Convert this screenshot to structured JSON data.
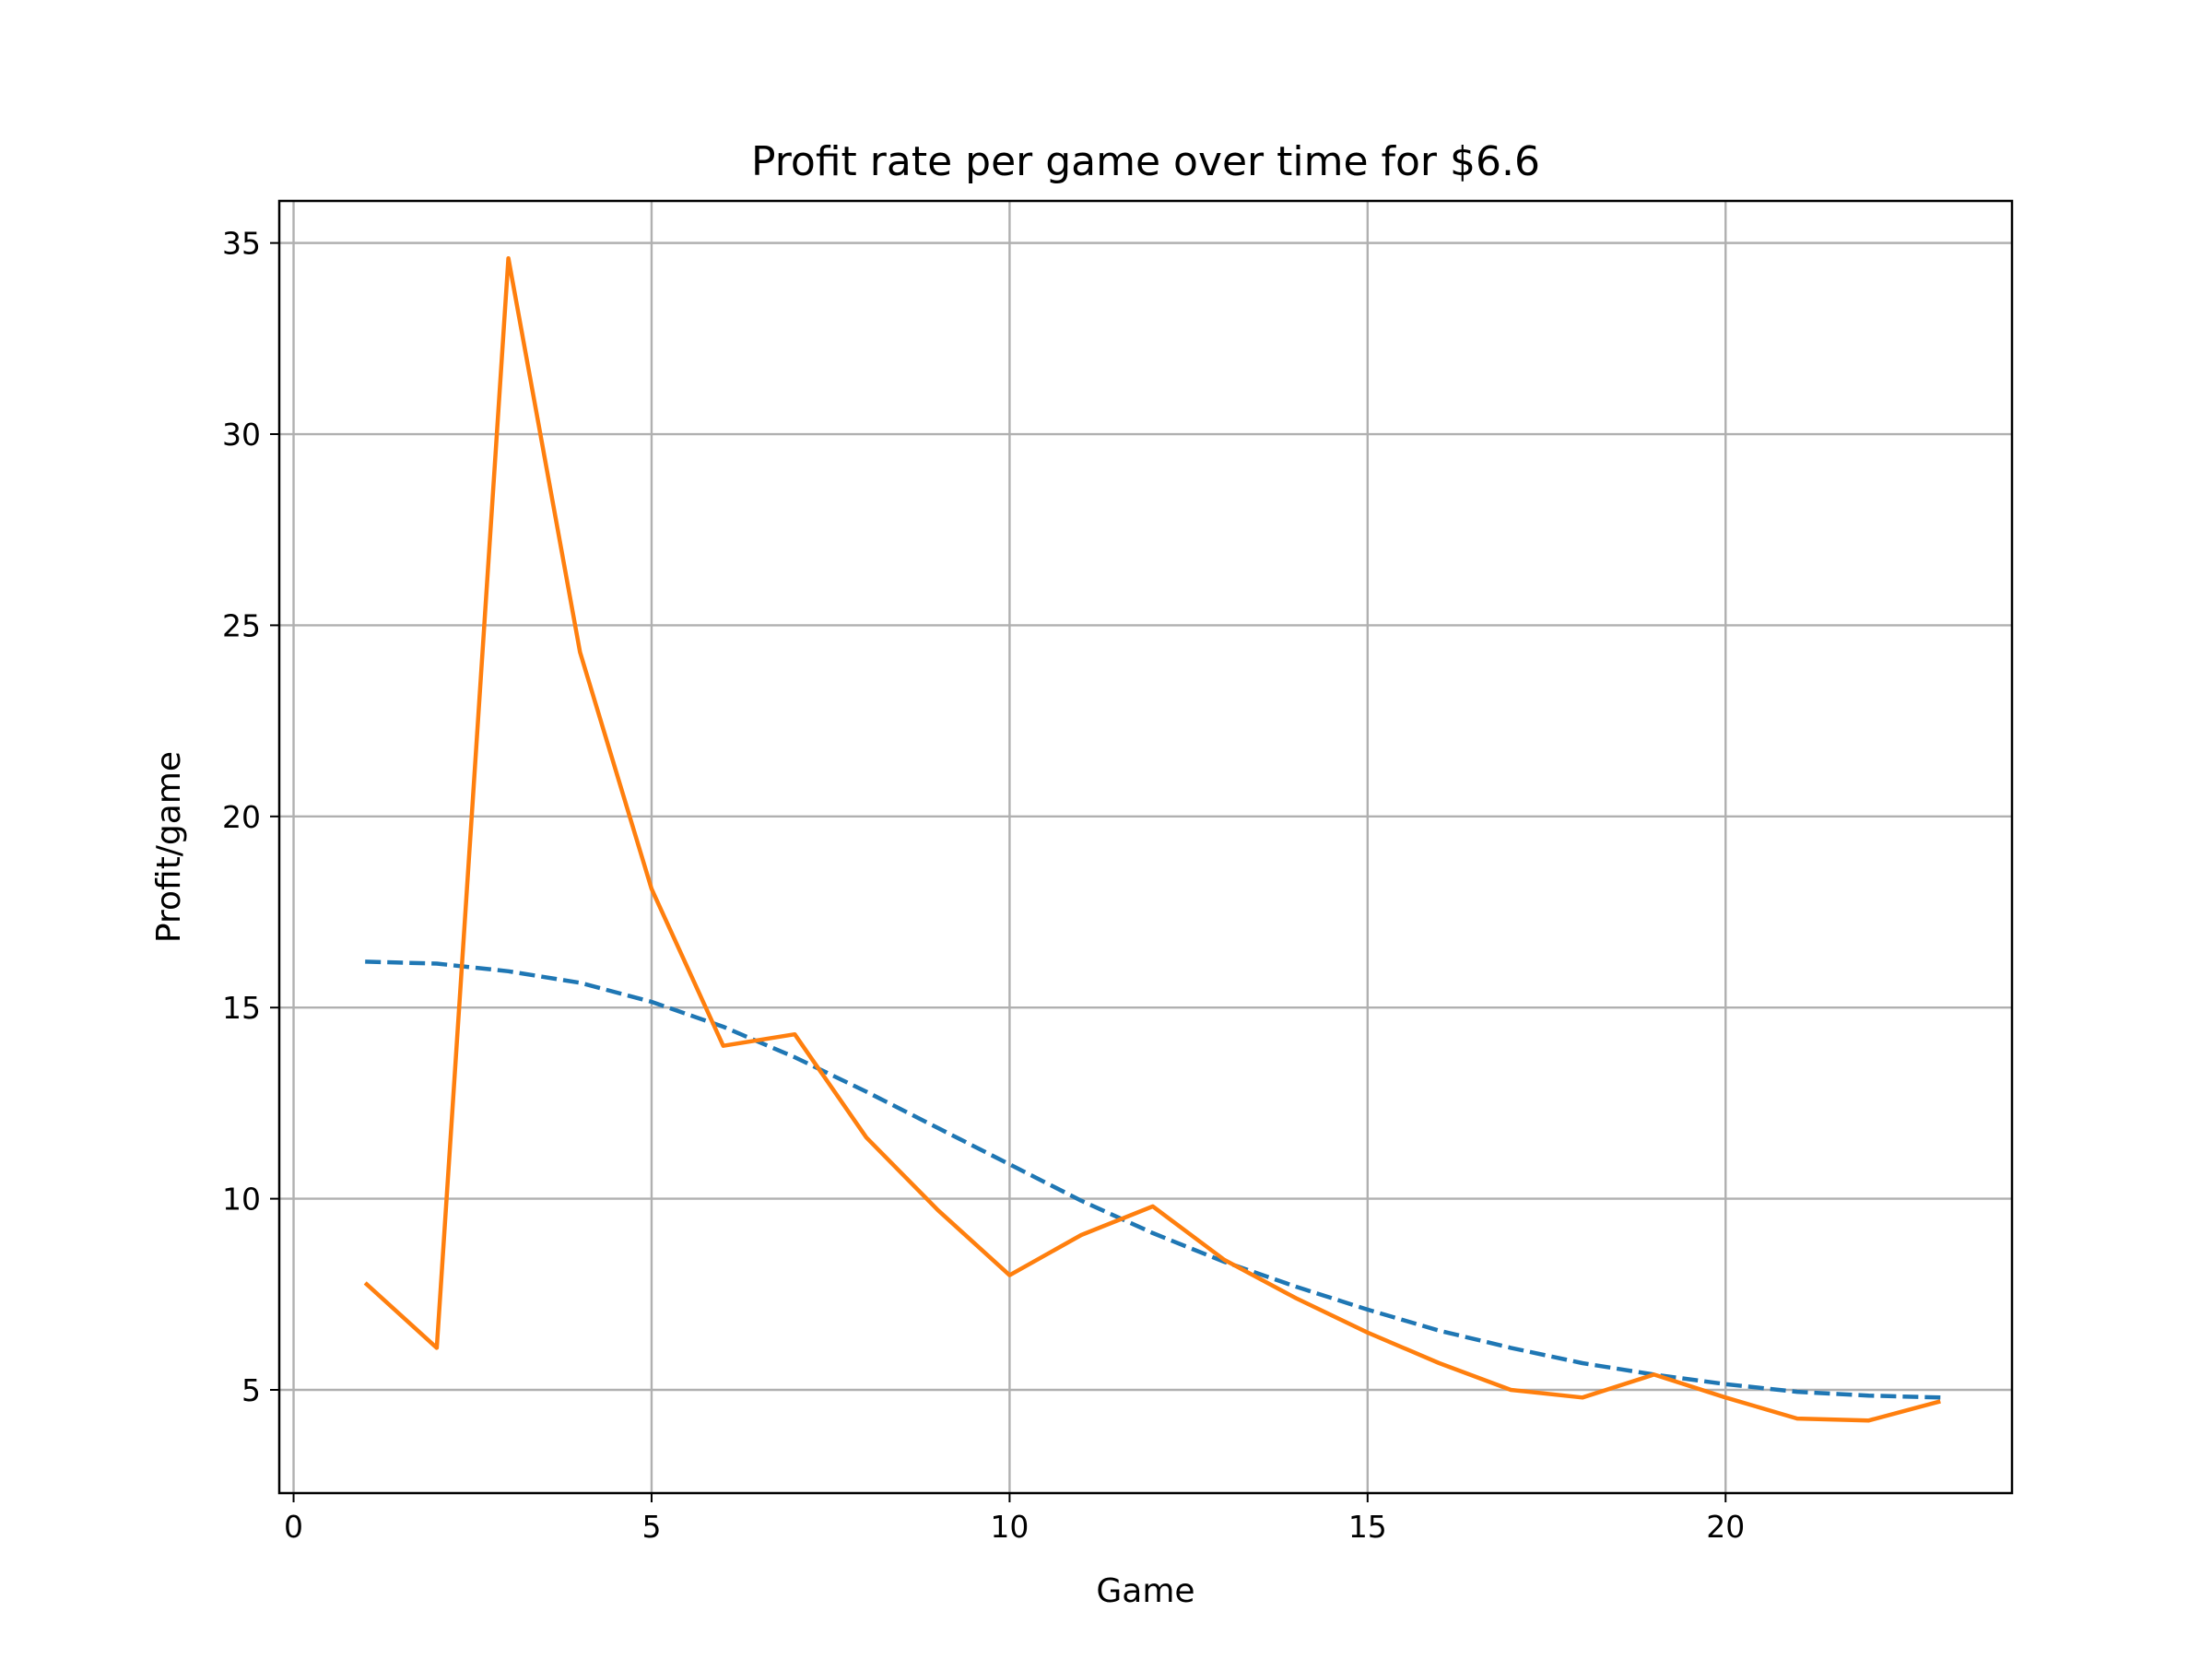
{
  "chart_data": {
    "type": "line",
    "title": "Profit rate per game over time for $6.6",
    "xlabel": "Game",
    "ylabel": "Profit/game",
    "xlim": [
      -0.2,
      24.0
    ],
    "ylim": [
      2.3,
      36.1
    ],
    "xticks": [
      0,
      5,
      10,
      15,
      20
    ],
    "yticks": [
      5,
      10,
      15,
      20,
      25,
      30,
      35
    ],
    "grid": true,
    "legend": "none",
    "series": [
      {
        "style": "dashed",
        "color": "#1f77b4",
        "x": [
          1,
          2,
          3,
          4,
          5,
          6,
          7,
          8,
          9,
          10,
          11,
          12,
          13,
          14,
          15,
          16,
          17,
          18,
          19,
          20,
          21,
          22,
          23
        ],
        "y": [
          16.2,
          16.15,
          15.95,
          15.65,
          15.15,
          14.5,
          13.7,
          12.8,
          11.85,
          10.9,
          9.95,
          9.1,
          8.35,
          7.7,
          7.1,
          6.55,
          6.1,
          5.7,
          5.4,
          5.15,
          4.95,
          4.85,
          4.8
        ]
      },
      {
        "style": "solid",
        "color": "#ff7f0e",
        "x": [
          1,
          2,
          3,
          4,
          5,
          6,
          7,
          8,
          9,
          10,
          11,
          12,
          13,
          14,
          15,
          16,
          17,
          18,
          19,
          20,
          21,
          22,
          23
        ],
        "y": [
          7.8,
          6.1,
          34.6,
          24.3,
          18.1,
          14.0,
          14.3,
          11.6,
          9.7,
          8.0,
          9.05,
          9.8,
          8.4,
          7.4,
          6.5,
          5.7,
          5.0,
          4.8,
          5.4,
          4.8,
          4.25,
          4.2,
          4.7
        ]
      }
    ]
  }
}
